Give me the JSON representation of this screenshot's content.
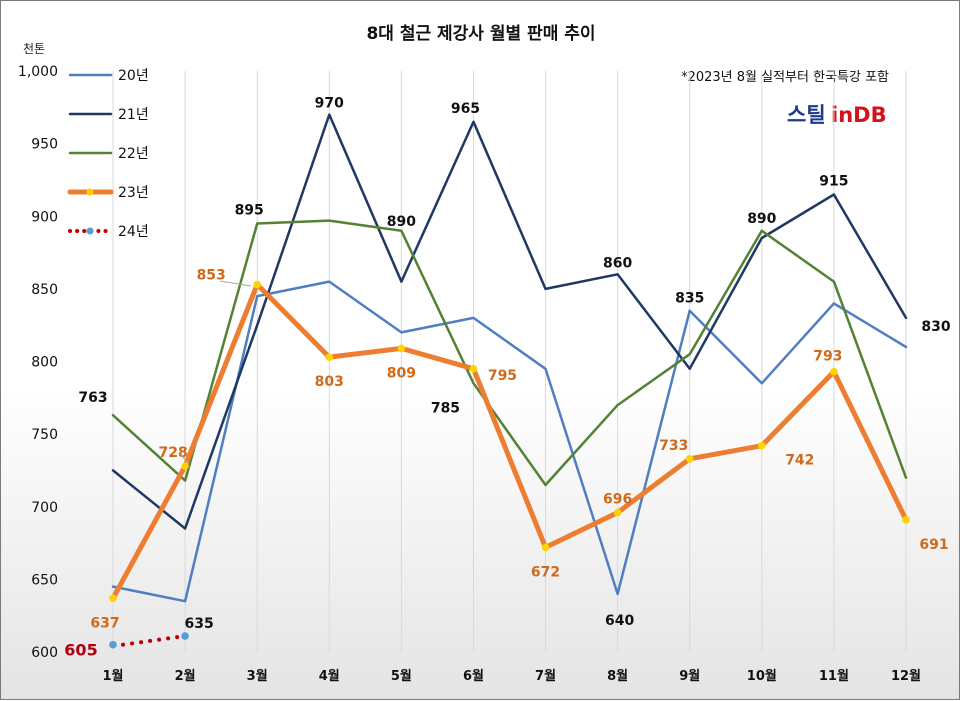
{
  "chart_data": {
    "type": "line",
    "title": "8대 철근 제강사 월별 판매 추이",
    "ylabel": "천톤",
    "note": "*2023년 8월 실적부터 한국특강 포함",
    "brand": {
      "part1": "스틸",
      "part2": "inDB"
    },
    "ylim": [
      600,
      1000
    ],
    "yticks": [
      "600",
      "650",
      "700",
      "750",
      "800",
      "850",
      "900",
      "950",
      "1,000"
    ],
    "categories": [
      "1월",
      "2월",
      "3월",
      "4월",
      "5월",
      "6월",
      "7월",
      "8월",
      "9월",
      "10월",
      "11월",
      "12월"
    ],
    "grid": "vertical",
    "legend_position": "top-left",
    "series": [
      {
        "name": "20년",
        "color": "#4f7fc1",
        "width": 2.5,
        "style": "solid",
        "values": [
          645,
          635,
          845,
          855,
          820,
          830,
          795,
          640,
          835,
          785,
          840,
          810
        ]
      },
      {
        "name": "21년",
        "color": "#1f3864",
        "width": 2.5,
        "style": "solid",
        "values": [
          725,
          685,
          825,
          970,
          855,
          965,
          850,
          860,
          795,
          885,
          915,
          830
        ]
      },
      {
        "name": "22년",
        "color": "#548235",
        "width": 2.5,
        "style": "solid",
        "values": [
          763,
          718,
          895,
          897,
          890,
          785,
          715,
          770,
          805,
          890,
          855,
          720
        ]
      },
      {
        "name": "23년",
        "color": "#ed7d31",
        "width": 5,
        "style": "solid",
        "marker_color": "#ffd200",
        "values": [
          637,
          728,
          853,
          803,
          809,
          795,
          672,
          696,
          733,
          742,
          793,
          691
        ]
      },
      {
        "name": "24년",
        "color": "#c00000",
        "width": 4,
        "style": "dotted",
        "marker_color": "#5b9bd5",
        "values": [
          605,
          611,
          null,
          null,
          null,
          null,
          null,
          null,
          null,
          null,
          null,
          null
        ]
      }
    ],
    "data_labels": [
      {
        "text": "763",
        "series": "22년",
        "index": 0,
        "color": "dark"
      },
      {
        "text": "635",
        "series": "20년",
        "index": 1,
        "color": "dark"
      },
      {
        "text": "895",
        "series": "22년",
        "index": 2,
        "color": "dark"
      },
      {
        "text": "970",
        "series": "21년",
        "index": 3,
        "color": "dark"
      },
      {
        "text": "890",
        "series": "22년",
        "index": 4,
        "color": "dark"
      },
      {
        "text": "965",
        "series": "21년",
        "index": 5,
        "color": "dark"
      },
      {
        "text": "785",
        "series": "22년",
        "index": 5,
        "color": "dark"
      },
      {
        "text": "860",
        "series": "21년",
        "index": 7,
        "color": "dark"
      },
      {
        "text": "640",
        "series": "20년",
        "index": 7,
        "color": "dark"
      },
      {
        "text": "835",
        "series": "20년",
        "index": 8,
        "color": "dark"
      },
      {
        "text": "890",
        "series": "22년",
        "index": 9,
        "color": "dark"
      },
      {
        "text": "915",
        "series": "21년",
        "index": 10,
        "color": "dark"
      },
      {
        "text": "830",
        "series": "21년",
        "index": 11,
        "color": "dark"
      },
      {
        "text": "637",
        "series": "23년",
        "index": 0,
        "color": "orange"
      },
      {
        "text": "728",
        "series": "23년",
        "index": 1,
        "color": "orange"
      },
      {
        "text": "853",
        "series": "23년",
        "index": 2,
        "color": "orange"
      },
      {
        "text": "803",
        "series": "23년",
        "index": 3,
        "color": "orange"
      },
      {
        "text": "809",
        "series": "23년",
        "index": 4,
        "color": "orange"
      },
      {
        "text": "795",
        "series": "23년",
        "index": 5,
        "color": "orange"
      },
      {
        "text": "672",
        "series": "23년",
        "index": 6,
        "color": "orange"
      },
      {
        "text": "696",
        "series": "23년",
        "index": 7,
        "color": "orange"
      },
      {
        "text": "733",
        "series": "23년",
        "index": 8,
        "color": "orange"
      },
      {
        "text": "742",
        "series": "23년",
        "index": 9,
        "color": "orange"
      },
      {
        "text": "793",
        "series": "23년",
        "index": 10,
        "color": "orange"
      },
      {
        "text": "691",
        "series": "23년",
        "index": 11,
        "color": "orange"
      },
      {
        "text": "605",
        "series": "24년",
        "index": 0,
        "color": "red"
      }
    ]
  }
}
